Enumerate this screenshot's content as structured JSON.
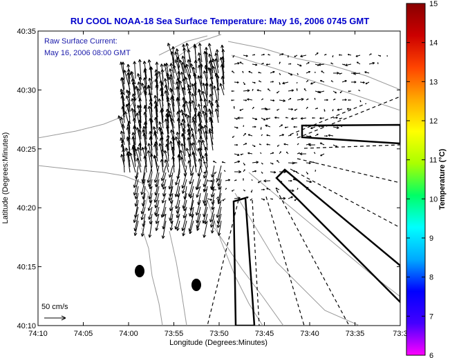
{
  "title": "RU COOL  NOAA-18  Sea Surface Temperature:  May 16, 2006 0745 GMT",
  "annotation": {
    "line1": "Raw Surface Current:",
    "line2": "May 16, 2006 08:00 GMT"
  },
  "x_axis": {
    "label": "Longitude (Degrees:Minutes)",
    "ticks": [
      "74:10",
      "74:05",
      "74:00",
      "73:55",
      "73:50",
      "73:45",
      "73:40",
      "73:35",
      "73:3"
    ]
  },
  "y_axis": {
    "label": "Latitude (Degrees:Minutes)",
    "ticks": [
      "40:35",
      "40:30",
      "40:25",
      "40:20",
      "40:15",
      "40:10"
    ]
  },
  "scale_label": "50 cm/s",
  "colorbar": {
    "label": "Temperature (°C)",
    "ticks": [
      "15",
      "14",
      "13",
      "12",
      "11",
      "10",
      "9",
      "8",
      "7",
      "6"
    ],
    "stops": [
      "#ff00ff",
      "#4400ff",
      "#0000ff",
      "#00aaff",
      "#00ffff",
      "#00ff66",
      "#aaff00",
      "#ffff00",
      "#ffaa00",
      "#ff4400",
      "#cc0000",
      "#880000"
    ]
  },
  "colors": {
    "coast": "#999999",
    "title": "#0000cc",
    "vectors": "#000000"
  }
}
